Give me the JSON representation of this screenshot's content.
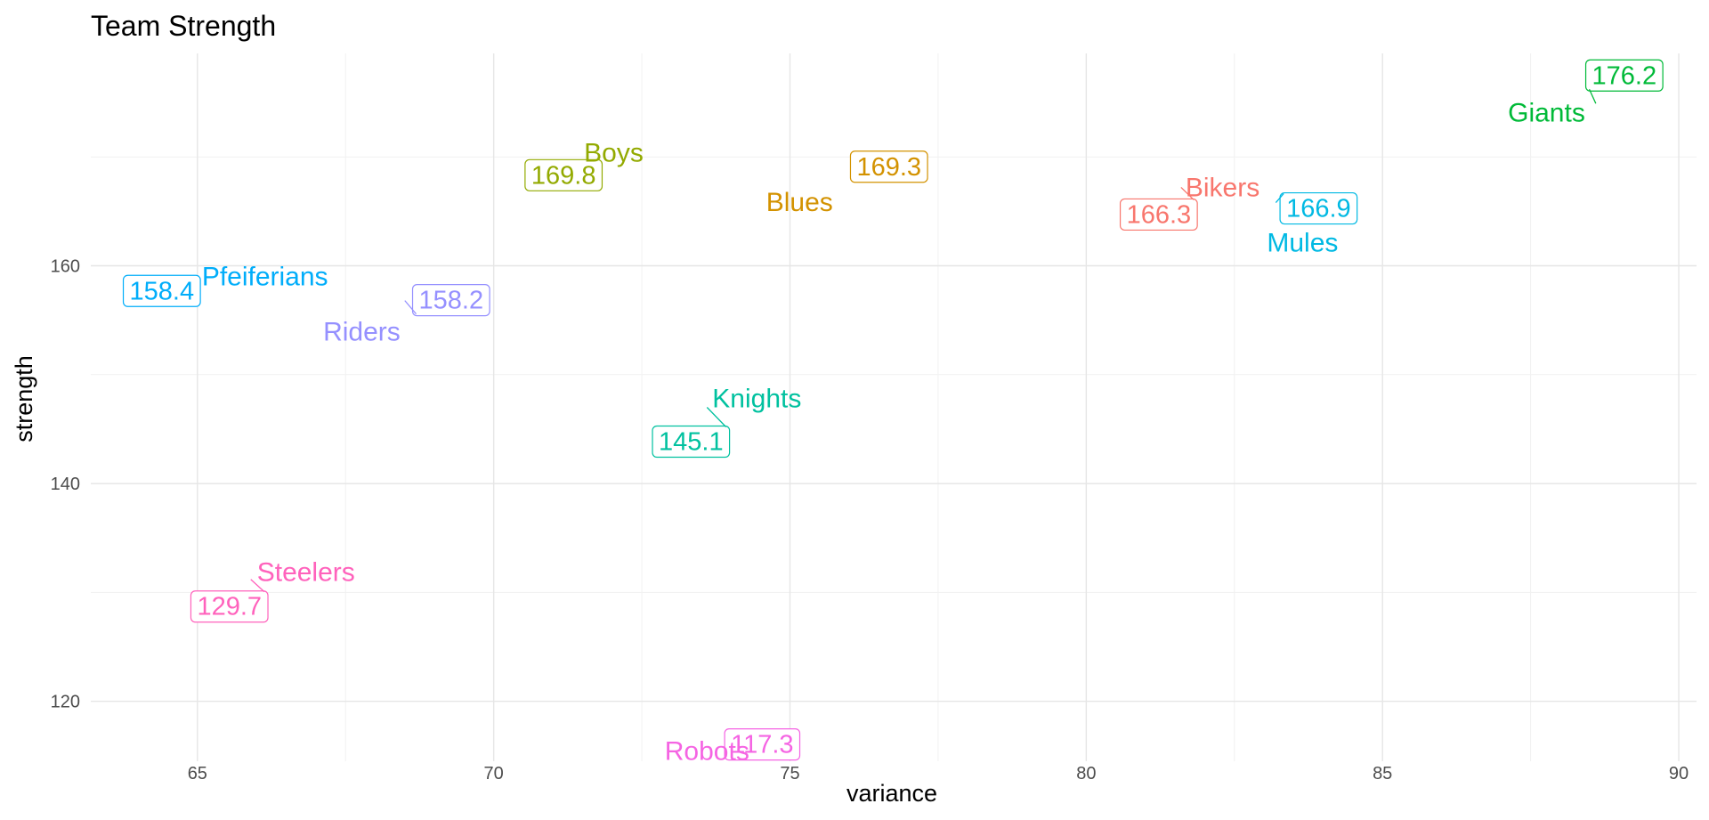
{
  "chart_data": {
    "type": "scatter",
    "title": "Team Strength",
    "xlabel": "variance",
    "ylabel": "strength",
    "xlim": [
      63.2,
      90.3
    ],
    "ylim": [
      114.5,
      179.5
    ],
    "x_ticks": [
      65,
      70,
      75,
      80,
      85,
      90
    ],
    "y_ticks": [
      120,
      140,
      160
    ],
    "grid": true,
    "points": [
      {
        "team": "Bikers",
        "x": 81.6,
        "y": 167.2,
        "value": "166.3",
        "color": "#F8766D"
      },
      {
        "team": "Blues",
        "x": 75.8,
        "y": 167.5,
        "value": "169.3",
        "color": "#D39200"
      },
      {
        "team": "Boys",
        "x": 71.6,
        "y": 170.4,
        "value": "169.8",
        "color": "#93AA00"
      },
      {
        "team": "Giants",
        "x": 88.6,
        "y": 174.9,
        "value": "176.2",
        "color": "#00BA38"
      },
      {
        "team": "Knights",
        "x": 73.6,
        "y": 147.0,
        "value": "145.1",
        "color": "#00C19F"
      },
      {
        "team": "Mules",
        "x": 83.2,
        "y": 165.8,
        "value": "166.9",
        "color": "#00B9E3"
      },
      {
        "team": "Pfeiferians",
        "x": 65.0,
        "y": 159.2,
        "value": "158.4",
        "color": "#00ADFA"
      },
      {
        "team": "Riders",
        "x": 68.5,
        "y": 156.8,
        "value": "158.2",
        "color": "#9590FF"
      },
      {
        "team": "Robots",
        "x": 73.6,
        "y": 116.9,
        "value": "117.3",
        "color": "#F564E3"
      },
      {
        "team": "Steelers",
        "x": 65.9,
        "y": 131.2,
        "value": "129.7",
        "color": "#FF62BC"
      }
    ]
  }
}
